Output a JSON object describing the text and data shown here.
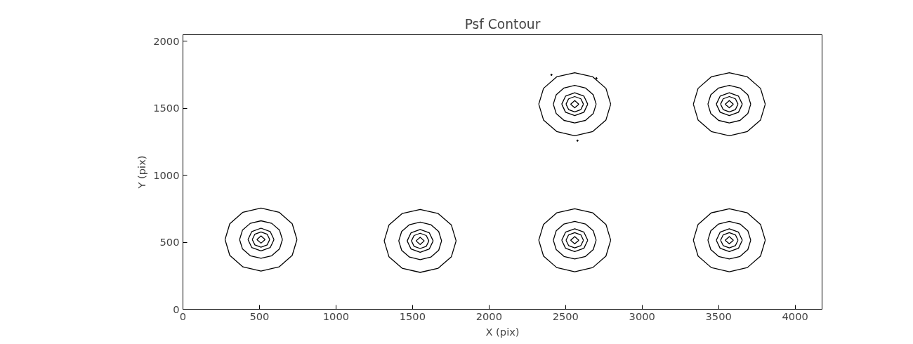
{
  "chart_data": {
    "type": "line",
    "title": "Psf Contour",
    "xlabel": "X (pix)",
    "ylabel": "Y (pix)",
    "xlim": [
      0,
      4176
    ],
    "ylim": [
      0,
      2048
    ],
    "xticks": [
      0,
      500,
      1000,
      1500,
      2000,
      2500,
      3000,
      3500,
      4000
    ],
    "yticks": [
      0,
      500,
      1000,
      1500,
      2000
    ],
    "series": [
      {
        "color": "#000000",
        "x": [
          275,
          306,
          392,
          510,
          628,
          714,
          745
        ],
        "values": [
          520,
          638,
          724,
          755,
          724,
          638,
          520
        ]
      },
      {
        "color": "#000000",
        "x": [
          275,
          306,
          392,
          510,
          628,
          714,
          745
        ],
        "values": [
          520,
          402,
          316,
          285,
          316,
          402,
          520
        ]
      },
      {
        "color": "#000000",
        "x": [
          370,
          389,
          440,
          510,
          580,
          631,
          650
        ],
        "values": [
          520,
          590,
          641,
          660,
          641,
          590,
          520
        ]
      },
      {
        "color": "#000000",
        "x": [
          370,
          389,
          440,
          510,
          580,
          631,
          650
        ],
        "values": [
          520,
          450,
          399,
          380,
          399,
          450,
          520
        ]
      },
      {
        "color": "#000000",
        "x": [
          425,
          450,
          510,
          570,
          595
        ],
        "values": [
          520,
          580,
          605,
          580,
          520
        ]
      },
      {
        "color": "#000000",
        "x": [
          425,
          450,
          510,
          570,
          595
        ],
        "values": [
          520,
          460,
          435,
          460,
          520
        ]
      },
      {
        "color": "#000000",
        "x": [
          453,
          470,
          510,
          550,
          567
        ],
        "values": [
          520,
          560,
          577,
          560,
          520
        ]
      },
      {
        "color": "#000000",
        "x": [
          453,
          470,
          510,
          550,
          567
        ],
        "values": [
          520,
          480,
          463,
          480,
          520
        ]
      },
      {
        "color": "#000000",
        "x": [
          483,
          510,
          537
        ],
        "values": [
          520,
          547,
          520
        ]
      },
      {
        "color": "#000000",
        "x": [
          483,
          510,
          537
        ],
        "values": [
          520,
          493,
          520
        ]
      },
      {
        "color": "#000000",
        "x": [
          1315,
          1346,
          1432,
          1550,
          1668,
          1754,
          1785
        ],
        "values": [
          510,
          628,
          714,
          745,
          714,
          628,
          510
        ]
      },
      {
        "color": "#000000",
        "x": [
          1315,
          1346,
          1432,
          1550,
          1668,
          1754,
          1785
        ],
        "values": [
          510,
          392,
          306,
          275,
          306,
          392,
          510
        ]
      },
      {
        "color": "#000000",
        "x": [
          1410,
          1429,
          1480,
          1550,
          1620,
          1671,
          1690
        ],
        "values": [
          510,
          580,
          631,
          650,
          631,
          580,
          510
        ]
      },
      {
        "color": "#000000",
        "x": [
          1410,
          1429,
          1480,
          1550,
          1620,
          1671,
          1690
        ],
        "values": [
          510,
          440,
          389,
          370,
          389,
          440,
          510
        ]
      },
      {
        "color": "#000000",
        "x": [
          1465,
          1490,
          1550,
          1610,
          1635
        ],
        "values": [
          510,
          570,
          595,
          570,
          510
        ]
      },
      {
        "color": "#000000",
        "x": [
          1465,
          1490,
          1550,
          1610,
          1635
        ],
        "values": [
          510,
          450,
          425,
          450,
          510
        ]
      },
      {
        "color": "#000000",
        "x": [
          1493,
          1510,
          1550,
          1590,
          1607
        ],
        "values": [
          510,
          550,
          567,
          550,
          510
        ]
      },
      {
        "color": "#000000",
        "x": [
          1493,
          1510,
          1550,
          1590,
          1607
        ],
        "values": [
          510,
          470,
          453,
          470,
          510
        ]
      },
      {
        "color": "#000000",
        "x": [
          1523,
          1550,
          1577
        ],
        "values": [
          510,
          537,
          510
        ]
      },
      {
        "color": "#000000",
        "x": [
          1523,
          1550,
          1577
        ],
        "values": [
          510,
          483,
          510
        ]
      },
      {
        "color": "#000000",
        "x": [
          2325,
          2356,
          2442,
          2560,
          2678,
          2764,
          2795
        ],
        "values": [
          515,
          633,
          719,
          750,
          719,
          633,
          515
        ]
      },
      {
        "color": "#000000",
        "x": [
          2325,
          2356,
          2442,
          2560,
          2678,
          2764,
          2795
        ],
        "values": [
          515,
          397,
          311,
          280,
          311,
          397,
          515
        ]
      },
      {
        "color": "#000000",
        "x": [
          2420,
          2439,
          2490,
          2560,
          2630,
          2681,
          2700
        ],
        "values": [
          515,
          585,
          636,
          655,
          636,
          585,
          515
        ]
      },
      {
        "color": "#000000",
        "x": [
          2420,
          2439,
          2490,
          2560,
          2630,
          2681,
          2700
        ],
        "values": [
          515,
          445,
          394,
          375,
          394,
          445,
          515
        ]
      },
      {
        "color": "#000000",
        "x": [
          2475,
          2500,
          2560,
          2620,
          2645
        ],
        "values": [
          515,
          575,
          600,
          575,
          515
        ]
      },
      {
        "color": "#000000",
        "x": [
          2475,
          2500,
          2560,
          2620,
          2645
        ],
        "values": [
          515,
          455,
          430,
          455,
          515
        ]
      },
      {
        "color": "#000000",
        "x": [
          2503,
          2520,
          2560,
          2600,
          2617
        ],
        "values": [
          515,
          555,
          572,
          555,
          515
        ]
      },
      {
        "color": "#000000",
        "x": [
          2503,
          2520,
          2560,
          2600,
          2617
        ],
        "values": [
          515,
          475,
          458,
          475,
          515
        ]
      },
      {
        "color": "#000000",
        "x": [
          2533,
          2560,
          2587
        ],
        "values": [
          515,
          542,
          515
        ]
      },
      {
        "color": "#000000",
        "x": [
          2533,
          2560,
          2587
        ],
        "values": [
          515,
          488,
          515
        ]
      },
      {
        "color": "#000000",
        "x": [
          3335,
          3366,
          3452,
          3570,
          3688,
          3774,
          3805
        ],
        "values": [
          515,
          633,
          719,
          750,
          719,
          633,
          515
        ]
      },
      {
        "color": "#000000",
        "x": [
          3335,
          3366,
          3452,
          3570,
          3688,
          3774,
          3805
        ],
        "values": [
          515,
          397,
          311,
          280,
          311,
          397,
          515
        ]
      },
      {
        "color": "#000000",
        "x": [
          3430,
          3449,
          3500,
          3570,
          3640,
          3691,
          3710
        ],
        "values": [
          515,
          585,
          636,
          655,
          636,
          585,
          515
        ]
      },
      {
        "color": "#000000",
        "x": [
          3430,
          3449,
          3500,
          3570,
          3640,
          3691,
          3710
        ],
        "values": [
          515,
          445,
          394,
          375,
          394,
          445,
          515
        ]
      },
      {
        "color": "#000000",
        "x": [
          3485,
          3510,
          3570,
          3630,
          3655
        ],
        "values": [
          515,
          575,
          600,
          575,
          515
        ]
      },
      {
        "color": "#000000",
        "x": [
          3485,
          3510,
          3570,
          3630,
          3655
        ],
        "values": [
          515,
          455,
          430,
          455,
          515
        ]
      },
      {
        "color": "#000000",
        "x": [
          3513,
          3530,
          3570,
          3610,
          3627
        ],
        "values": [
          515,
          555,
          572,
          555,
          515
        ]
      },
      {
        "color": "#000000",
        "x": [
          3513,
          3530,
          3570,
          3610,
          3627
        ],
        "values": [
          515,
          475,
          458,
          475,
          515
        ]
      },
      {
        "color": "#000000",
        "x": [
          3543,
          3570,
          3597
        ],
        "values": [
          515,
          542,
          515
        ]
      },
      {
        "color": "#000000",
        "x": [
          3543,
          3570,
          3597
        ],
        "values": [
          515,
          488,
          515
        ]
      },
      {
        "color": "#000000",
        "x": [
          2325,
          2356,
          2442,
          2560,
          2678,
          2764,
          2795
        ],
        "values": [
          1530,
          1648,
          1734,
          1765,
          1734,
          1648,
          1530
        ]
      },
      {
        "color": "#000000",
        "x": [
          2325,
          2356,
          2442,
          2560,
          2678,
          2764,
          2795
        ],
        "values": [
          1530,
          1412,
          1326,
          1295,
          1326,
          1412,
          1530
        ]
      },
      {
        "color": "#000000",
        "x": [
          2420,
          2439,
          2490,
          2560,
          2630,
          2681,
          2700
        ],
        "values": [
          1530,
          1600,
          1651,
          1670,
          1651,
          1600,
          1530
        ]
      },
      {
        "color": "#000000",
        "x": [
          2420,
          2439,
          2490,
          2560,
          2630,
          2681,
          2700
        ],
        "values": [
          1530,
          1460,
          1409,
          1390,
          1409,
          1460,
          1530
        ]
      },
      {
        "color": "#000000",
        "x": [
          2475,
          2500,
          2560,
          2620,
          2645
        ],
        "values": [
          1530,
          1590,
          1615,
          1590,
          1530
        ]
      },
      {
        "color": "#000000",
        "x": [
          2475,
          2500,
          2560,
          2620,
          2645
        ],
        "values": [
          1530,
          1470,
          1445,
          1470,
          1530
        ]
      },
      {
        "color": "#000000",
        "x": [
          2503,
          2520,
          2560,
          2600,
          2617
        ],
        "values": [
          1530,
          1570,
          1587,
          1570,
          1530
        ]
      },
      {
        "color": "#000000",
        "x": [
          2503,
          2520,
          2560,
          2600,
          2617
        ],
        "values": [
          1530,
          1490,
          1473,
          1490,
          1530
        ]
      },
      {
        "color": "#000000",
        "x": [
          2533,
          2560,
          2587
        ],
        "values": [
          1530,
          1557,
          1530
        ]
      },
      {
        "color": "#000000",
        "x": [
          2533,
          2560,
          2587
        ],
        "values": [
          1530,
          1503,
          1530
        ]
      },
      {
        "color": "#000000",
        "x": [
          3335,
          3366,
          3452,
          3570,
          3688,
          3774,
          3805
        ],
        "values": [
          1530,
          1648,
          1734,
          1765,
          1734,
          1648,
          1530
        ]
      },
      {
        "color": "#000000",
        "x": [
          3335,
          3366,
          3452,
          3570,
          3688,
          3774,
          3805
        ],
        "values": [
          1530,
          1412,
          1326,
          1295,
          1326,
          1412,
          1530
        ]
      },
      {
        "color": "#000000",
        "x": [
          3430,
          3449,
          3500,
          3570,
          3640,
          3691,
          3710
        ],
        "values": [
          1530,
          1600,
          1651,
          1670,
          1651,
          1600,
          1530
        ]
      },
      {
        "color": "#000000",
        "x": [
          3430,
          3449,
          3500,
          3570,
          3640,
          3691,
          3710
        ],
        "values": [
          1530,
          1460,
          1409,
          1390,
          1409,
          1460,
          1530
        ]
      },
      {
        "color": "#000000",
        "x": [
          3485,
          3510,
          3570,
          3630,
          3655
        ],
        "values": [
          1530,
          1590,
          1615,
          1590,
          1530
        ]
      },
      {
        "color": "#000000",
        "x": [
          3485,
          3510,
          3570,
          3630,
          3655
        ],
        "values": [
          1530,
          1470,
          1445,
          1470,
          1530
        ]
      },
      {
        "color": "#000000",
        "x": [
          3513,
          3530,
          3570,
          3610,
          3627
        ],
        "values": [
          1530,
          1570,
          1587,
          1570,
          1530
        ]
      },
      {
        "color": "#000000",
        "x": [
          3513,
          3530,
          3570,
          3610,
          3627
        ],
        "values": [
          1530,
          1490,
          1473,
          1490,
          1530
        ]
      },
      {
        "color": "#000000",
        "x": [
          3543,
          3570,
          3597
        ],
        "values": [
          1530,
          1557,
          1530
        ]
      },
      {
        "color": "#000000",
        "x": [
          3543,
          3570,
          3597
        ],
        "values": [
          1530,
          1503,
          1530
        ]
      },
      {
        "type": "scatter",
        "color": "#000000",
        "x": [
          2408,
          2578,
          2702
        ],
        "values": [
          1749,
          1258,
          1723
        ]
      }
    ]
  }
}
